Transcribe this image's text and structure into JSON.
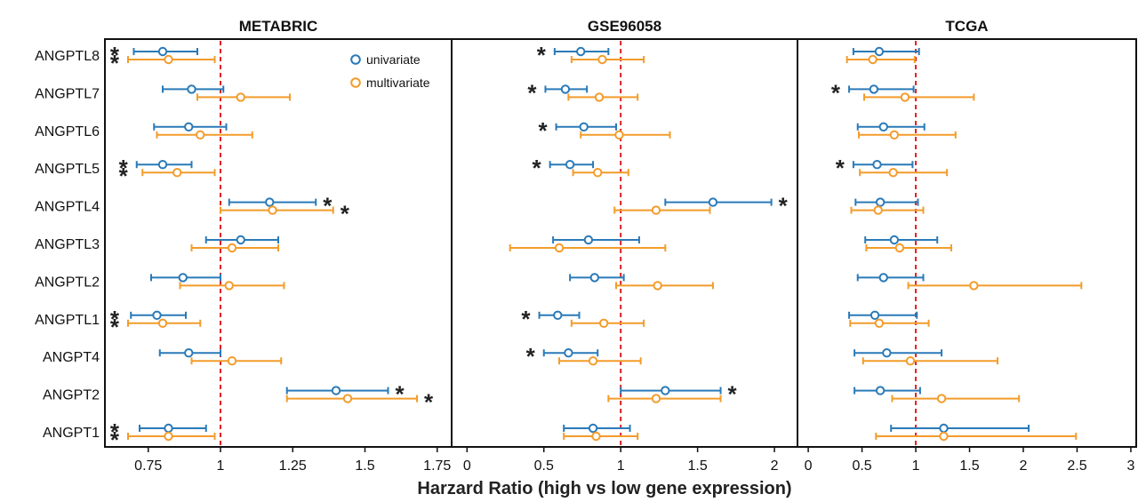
{
  "xlabel": "Harzard Ratio (high vs low gene expression)",
  "genes": [
    "ANGPTL8",
    "ANGPTL7",
    "ANGPTL6",
    "ANGPTL5",
    "ANGPTL4",
    "ANGPTL3",
    "ANGPTL2",
    "ANGPTL1",
    "ANGPT4",
    "ANGPT2",
    "ANGPT1"
  ],
  "legend": {
    "univariate": "univariate",
    "multivariate": "multivariate"
  },
  "colors": {
    "univariate": "#2a7ab8",
    "multivariate": "#f39c2b",
    "refline": "#e02020",
    "star": "#222222"
  },
  "chart_data": [
    {
      "type": "forest",
      "title": "METABRIC",
      "xlim": [
        0.6,
        1.8
      ],
      "ticks": [
        0.75,
        1,
        1.25,
        1.5,
        1.75
      ],
      "tick_labels": [
        "0.75",
        "1",
        "1.25",
        "1.5",
        "1.75"
      ],
      "reference": 1,
      "univariate": [
        {
          "hr": 0.8,
          "lo": 0.7,
          "hi": 0.92,
          "star": true
        },
        {
          "hr": 0.9,
          "lo": 0.8,
          "hi": 1.01,
          "star": false
        },
        {
          "hr": 0.89,
          "lo": 0.77,
          "hi": 1.02,
          "star": false
        },
        {
          "hr": 0.8,
          "lo": 0.71,
          "hi": 0.9,
          "star": true
        },
        {
          "hr": 1.17,
          "lo": 1.03,
          "hi": 1.33,
          "star": true
        },
        {
          "hr": 1.07,
          "lo": 0.95,
          "hi": 1.2,
          "star": false
        },
        {
          "hr": 0.87,
          "lo": 0.76,
          "hi": 1.0,
          "star": false
        },
        {
          "hr": 0.78,
          "lo": 0.69,
          "hi": 0.88,
          "star": true
        },
        {
          "hr": 0.89,
          "lo": 0.79,
          "hi": 1.0,
          "star": false
        },
        {
          "hr": 1.4,
          "lo": 1.23,
          "hi": 1.58,
          "star": true
        },
        {
          "hr": 0.82,
          "lo": 0.72,
          "hi": 0.95,
          "star": true
        }
      ],
      "multivariate": [
        {
          "hr": 0.82,
          "lo": 0.68,
          "hi": 0.98,
          "star": true
        },
        {
          "hr": 1.07,
          "lo": 0.92,
          "hi": 1.24,
          "star": false
        },
        {
          "hr": 0.93,
          "lo": 0.78,
          "hi": 1.11,
          "star": false
        },
        {
          "hr": 0.85,
          "lo": 0.73,
          "hi": 0.98,
          "star": true
        },
        {
          "hr": 1.18,
          "lo": 1.0,
          "hi": 1.39,
          "star": true
        },
        {
          "hr": 1.04,
          "lo": 0.9,
          "hi": 1.2,
          "star": false
        },
        {
          "hr": 1.03,
          "lo": 0.86,
          "hi": 1.22,
          "star": false
        },
        {
          "hr": 0.8,
          "lo": 0.68,
          "hi": 0.93,
          "star": true
        },
        {
          "hr": 1.04,
          "lo": 0.9,
          "hi": 1.21,
          "star": false
        },
        {
          "hr": 1.44,
          "lo": 1.23,
          "hi": 1.68,
          "star": true
        },
        {
          "hr": 0.82,
          "lo": 0.68,
          "hi": 0.98,
          "star": true
        }
      ]
    },
    {
      "type": "forest",
      "title": "GSE96058",
      "xlim": [
        -0.1,
        2.15
      ],
      "ticks": [
        0,
        0.5,
        1,
        1.5,
        2
      ],
      "tick_labels": [
        "0",
        "0.5",
        "1",
        "1.5",
        "2"
      ],
      "reference": 1,
      "univariate": [
        {
          "hr": 0.74,
          "lo": 0.57,
          "hi": 0.92,
          "star": true
        },
        {
          "hr": 0.64,
          "lo": 0.51,
          "hi": 0.78,
          "star": true
        },
        {
          "hr": 0.76,
          "lo": 0.58,
          "hi": 0.97,
          "star": true
        },
        {
          "hr": 0.67,
          "lo": 0.54,
          "hi": 0.82,
          "star": true
        },
        {
          "hr": 1.6,
          "lo": 1.29,
          "hi": 1.98,
          "star": true
        },
        {
          "hr": 0.79,
          "lo": 0.56,
          "hi": 1.12,
          "star": false
        },
        {
          "hr": 0.83,
          "lo": 0.67,
          "hi": 1.02,
          "star": false
        },
        {
          "hr": 0.59,
          "lo": 0.47,
          "hi": 0.73,
          "star": true
        },
        {
          "hr": 0.66,
          "lo": 0.5,
          "hi": 0.85,
          "star": true
        },
        {
          "hr": 1.29,
          "lo": 1.0,
          "hi": 1.65,
          "star": true
        },
        {
          "hr": 0.82,
          "lo": 0.63,
          "hi": 1.06,
          "star": false
        }
      ],
      "multivariate": [
        {
          "hr": 0.88,
          "lo": 0.68,
          "hi": 1.15,
          "star": false
        },
        {
          "hr": 0.86,
          "lo": 0.66,
          "hi": 1.11,
          "star": false
        },
        {
          "hr": 0.99,
          "lo": 0.74,
          "hi": 1.32,
          "star": false
        },
        {
          "hr": 0.85,
          "lo": 0.69,
          "hi": 1.05,
          "star": false
        },
        {
          "hr": 1.23,
          "lo": 0.96,
          "hi": 1.58,
          "star": false
        },
        {
          "hr": 0.6,
          "lo": 0.28,
          "hi": 1.29,
          "star": false
        },
        {
          "hr": 1.24,
          "lo": 0.97,
          "hi": 1.6,
          "star": false
        },
        {
          "hr": 0.89,
          "lo": 0.68,
          "hi": 1.15,
          "star": false
        },
        {
          "hr": 0.82,
          "lo": 0.6,
          "hi": 1.13,
          "star": false
        },
        {
          "hr": 1.23,
          "lo": 0.92,
          "hi": 1.65,
          "star": false
        },
        {
          "hr": 0.84,
          "lo": 0.63,
          "hi": 1.11,
          "star": false
        }
      ]
    },
    {
      "type": "forest",
      "title": "TCGA",
      "xlim": [
        -0.1,
        3.05
      ],
      "ticks": [
        0,
        0.5,
        1,
        1.5,
        2,
        2.5,
        3
      ],
      "tick_labels": [
        "0",
        "0.5",
        "1",
        "1.5",
        "2",
        "2.5",
        "3"
      ],
      "reference": 1,
      "univariate": [
        {
          "hr": 0.66,
          "lo": 0.42,
          "hi": 1.03,
          "star": false
        },
        {
          "hr": 0.61,
          "lo": 0.38,
          "hi": 0.98,
          "star": true
        },
        {
          "hr": 0.7,
          "lo": 0.46,
          "hi": 1.08,
          "star": false
        },
        {
          "hr": 0.64,
          "lo": 0.42,
          "hi": 0.97,
          "star": true
        },
        {
          "hr": 0.67,
          "lo": 0.44,
          "hi": 1.02,
          "star": false
        },
        {
          "hr": 0.8,
          "lo": 0.53,
          "hi": 1.2,
          "star": false
        },
        {
          "hr": 0.7,
          "lo": 0.46,
          "hi": 1.07,
          "star": false
        },
        {
          "hr": 0.62,
          "lo": 0.38,
          "hi": 1.01,
          "star": false
        },
        {
          "hr": 0.73,
          "lo": 0.43,
          "hi": 1.24,
          "star": false
        },
        {
          "hr": 0.67,
          "lo": 0.43,
          "hi": 1.04,
          "star": false
        },
        {
          "hr": 1.26,
          "lo": 0.77,
          "hi": 2.05,
          "star": false
        }
      ],
      "multivariate": [
        {
          "hr": 0.6,
          "lo": 0.36,
          "hi": 0.99,
          "star": false
        },
        {
          "hr": 0.9,
          "lo": 0.52,
          "hi": 1.54,
          "star": false
        },
        {
          "hr": 0.8,
          "lo": 0.47,
          "hi": 1.37,
          "star": false
        },
        {
          "hr": 0.79,
          "lo": 0.48,
          "hi": 1.29,
          "star": false
        },
        {
          "hr": 0.65,
          "lo": 0.4,
          "hi": 1.07,
          "star": false
        },
        {
          "hr": 0.85,
          "lo": 0.54,
          "hi": 1.33,
          "star": false
        },
        {
          "hr": 1.54,
          "lo": 0.93,
          "hi": 2.54,
          "star": false
        },
        {
          "hr": 0.66,
          "lo": 0.39,
          "hi": 1.12,
          "star": false
        },
        {
          "hr": 0.95,
          "lo": 0.51,
          "hi": 1.76,
          "star": false
        },
        {
          "hr": 1.24,
          "lo": 0.78,
          "hi": 1.96,
          "star": false
        },
        {
          "hr": 1.26,
          "lo": 0.63,
          "hi": 2.49,
          "star": false
        }
      ]
    }
  ]
}
